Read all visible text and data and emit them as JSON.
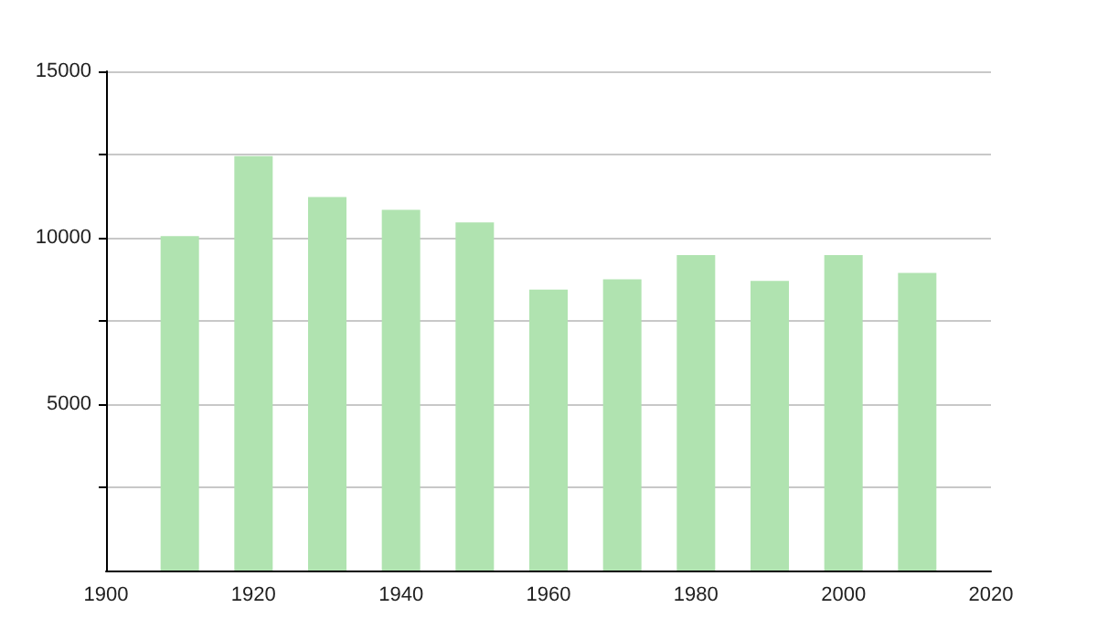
{
  "chart_data": {
    "type": "bar",
    "x": [
      1910,
      1920,
      1930,
      1940,
      1950,
      1960,
      1970,
      1980,
      1990,
      2000,
      2010
    ],
    "values": [
      10050,
      12450,
      11220,
      10840,
      10460,
      8440,
      8750,
      9480,
      8700,
      9480,
      8940
    ],
    "color": "#b0e3b0",
    "xlim": [
      1900,
      2020
    ],
    "xticks": [
      1900,
      1920,
      1940,
      1960,
      1980,
      2000,
      2020
    ],
    "ylim": [
      0,
      15000
    ],
    "yticks": [
      {
        "value": 2500,
        "label": null
      },
      5000,
      {
        "value": 7500,
        "label": null
      },
      10000,
      {
        "value": 12500,
        "label": null
      },
      15000
    ],
    "grid": "y"
  }
}
